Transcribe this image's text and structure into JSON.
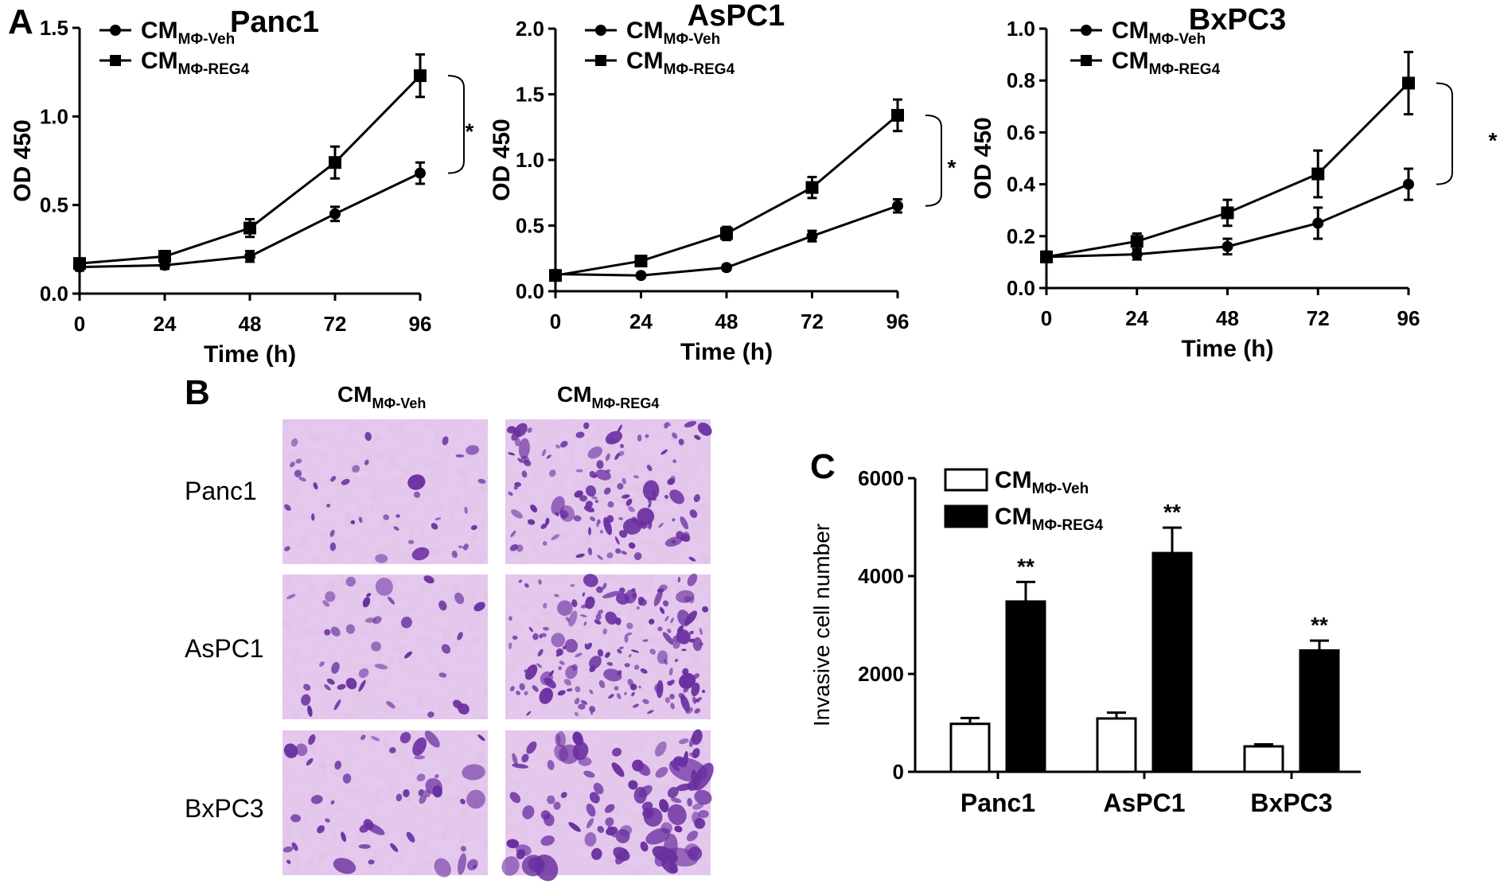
{
  "panel_letters": {
    "a": "A",
    "b": "B",
    "c": "C"
  },
  "legend": {
    "veh": {
      "main": "CM",
      "sub": "MΦ-Veh"
    },
    "reg4": {
      "main": "CM",
      "sub": "MΦ-REG4"
    }
  },
  "significance": {
    "single": "*",
    "double": "**"
  },
  "panel_b": {
    "rows": [
      "Panc1",
      "AsPC1",
      "BxPC3"
    ],
    "stain_color": "#6a2fa0",
    "background_color": "#e6c8ef"
  },
  "chart_data": [
    {
      "type": "line",
      "title": "Panc1",
      "xlabel": "Time (h)",
      "ylabel": "OD 450",
      "x": [
        0,
        24,
        48,
        72,
        96
      ],
      "xlim": [
        0,
        96
      ],
      "ylim": [
        0,
        1.5
      ],
      "yticks": [
        "0.0",
        "0.5",
        "1.0",
        "1.5"
      ],
      "grid": false,
      "legend_position": "top-left",
      "series": [
        {
          "name": "CMMΦ-Veh",
          "marker": "circle",
          "values": [
            0.15,
            0.16,
            0.21,
            0.45,
            0.68
          ],
          "errors": [
            0.02,
            0.02,
            0.03,
            0.04,
            0.06
          ]
        },
        {
          "name": "CMMΦ-REG4",
          "marker": "square",
          "values": [
            0.17,
            0.21,
            0.37,
            0.74,
            1.23
          ],
          "errors": [
            0.02,
            0.03,
            0.05,
            0.09,
            0.12
          ]
        }
      ],
      "annotation": "*"
    },
    {
      "type": "line",
      "title": "AsPC1",
      "xlabel": "Time (h)",
      "ylabel": "OD 450",
      "x": [
        0,
        24,
        48,
        72,
        96
      ],
      "xlim": [
        0,
        96
      ],
      "ylim": [
        0,
        2.0
      ],
      "yticks": [
        "0.0",
        "0.5",
        "1.0",
        "1.5",
        "2.0"
      ],
      "grid": false,
      "legend_position": "top-left",
      "series": [
        {
          "name": "CMMΦ-Veh",
          "marker": "circle",
          "values": [
            0.13,
            0.12,
            0.18,
            0.42,
            0.65
          ],
          "errors": [
            0.02,
            0.01,
            0.02,
            0.04,
            0.05
          ]
        },
        {
          "name": "CMMΦ-REG4",
          "marker": "square",
          "values": [
            0.12,
            0.23,
            0.44,
            0.79,
            1.34
          ],
          "errors": [
            0.02,
            0.02,
            0.05,
            0.08,
            0.12
          ]
        }
      ],
      "annotation": "*"
    },
    {
      "type": "line",
      "title": "BxPC3",
      "xlabel": "Time (h)",
      "ylabel": "OD 450",
      "x": [
        0,
        24,
        48,
        72,
        96
      ],
      "xlim": [
        0,
        96
      ],
      "ylim": [
        0,
        1.0
      ],
      "yticks": [
        "0.0",
        "0.2",
        "0.4",
        "0.6",
        "0.8",
        "1.0"
      ],
      "grid": false,
      "legend_position": "top-left",
      "series": [
        {
          "name": "CMMΦ-Veh",
          "marker": "circle",
          "values": [
            0.12,
            0.13,
            0.16,
            0.25,
            0.4
          ],
          "errors": [
            0.02,
            0.02,
            0.03,
            0.06,
            0.06
          ]
        },
        {
          "name": "CMMΦ-REG4",
          "marker": "square",
          "values": [
            0.12,
            0.18,
            0.29,
            0.44,
            0.79
          ],
          "errors": [
            0.02,
            0.03,
            0.05,
            0.09,
            0.12
          ]
        }
      ],
      "annotation": "*"
    },
    {
      "type": "bar",
      "title": "",
      "xlabel": "",
      "ylabel": "Invasive cell number",
      "categories": [
        "Panc1",
        "AsPC1",
        "BxPC3"
      ],
      "ylim": [
        0,
        6000
      ],
      "yticks": [
        "0",
        "2000",
        "4000",
        "6000"
      ],
      "grid": false,
      "legend_position": "top-left",
      "series": [
        {
          "name": "CMMΦ-Veh",
          "fill": "#ffffff",
          "values": [
            980,
            1090,
            520
          ],
          "errors": [
            120,
            120,
            40
          ]
        },
        {
          "name": "CMMΦ-REG4",
          "fill": "#000000",
          "values": [
            3480,
            4470,
            2480
          ],
          "errors": [
            400,
            520,
            200
          ]
        }
      ],
      "annotations": [
        "**",
        "**",
        "**"
      ]
    }
  ]
}
